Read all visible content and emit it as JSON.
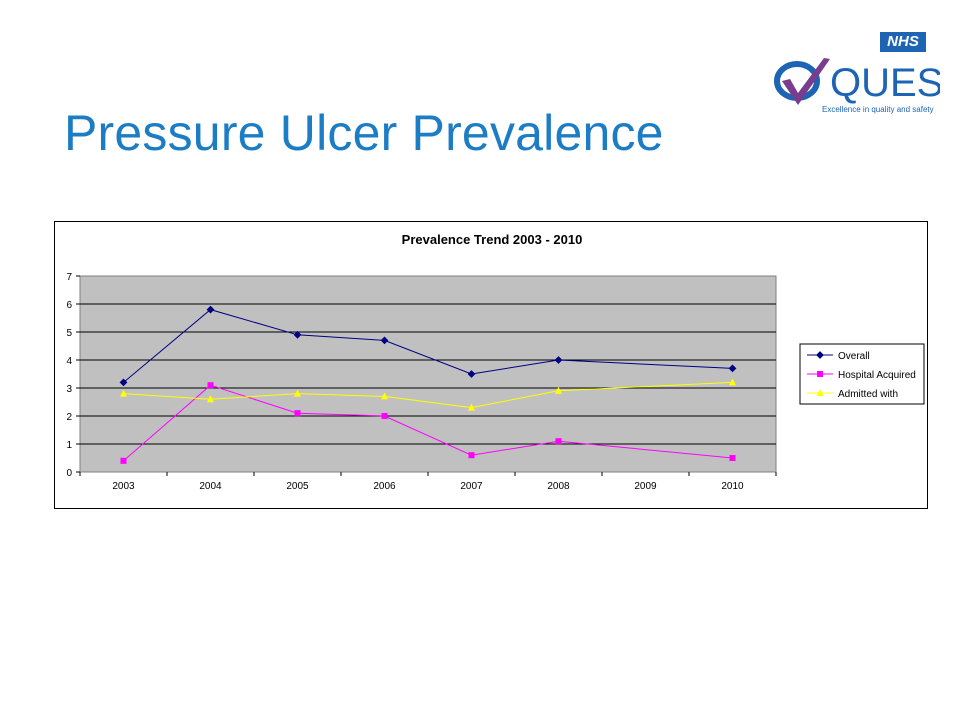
{
  "slide": {
    "title": "Pressure Ulcer Prevalence"
  },
  "branding": {
    "nhs": "NHS",
    "quest_word": "QUEST",
    "quest_tagline": "Excellence in quality and safety",
    "colors": {
      "nhs_blue": "#1e64b4",
      "check_purple": "#7a3c8c",
      "title_blue": "#1c7dc4"
    }
  },
  "chart_data": {
    "type": "line",
    "title": "Prevalence Trend 2003 - 2010",
    "xlabel": "",
    "ylabel": "",
    "categories": [
      "2003",
      "2004",
      "2005",
      "2006",
      "2007",
      "2008",
      "2009",
      "2010"
    ],
    "ylim": [
      0,
      7
    ],
    "yticks": [
      0,
      1,
      2,
      3,
      4,
      5,
      6,
      7
    ],
    "grid": true,
    "plot_background": "#c0c0c0",
    "legend_position": "right",
    "series": [
      {
        "name": "Overall",
        "color": "#000080",
        "marker": "diamond",
        "values": [
          3.2,
          5.8,
          4.9,
          4.7,
          3.5,
          4.0,
          null,
          3.7
        ]
      },
      {
        "name": "Hospital Acquired",
        "color": "#ff00ff",
        "marker": "square",
        "values": [
          0.4,
          3.1,
          2.1,
          2.0,
          0.6,
          1.1,
          null,
          0.5
        ]
      },
      {
        "name": "Admitted with",
        "color": "#ffff00",
        "marker": "triangle",
        "values": [
          2.8,
          2.6,
          2.8,
          2.7,
          2.3,
          2.9,
          null,
          3.2
        ]
      }
    ]
  }
}
